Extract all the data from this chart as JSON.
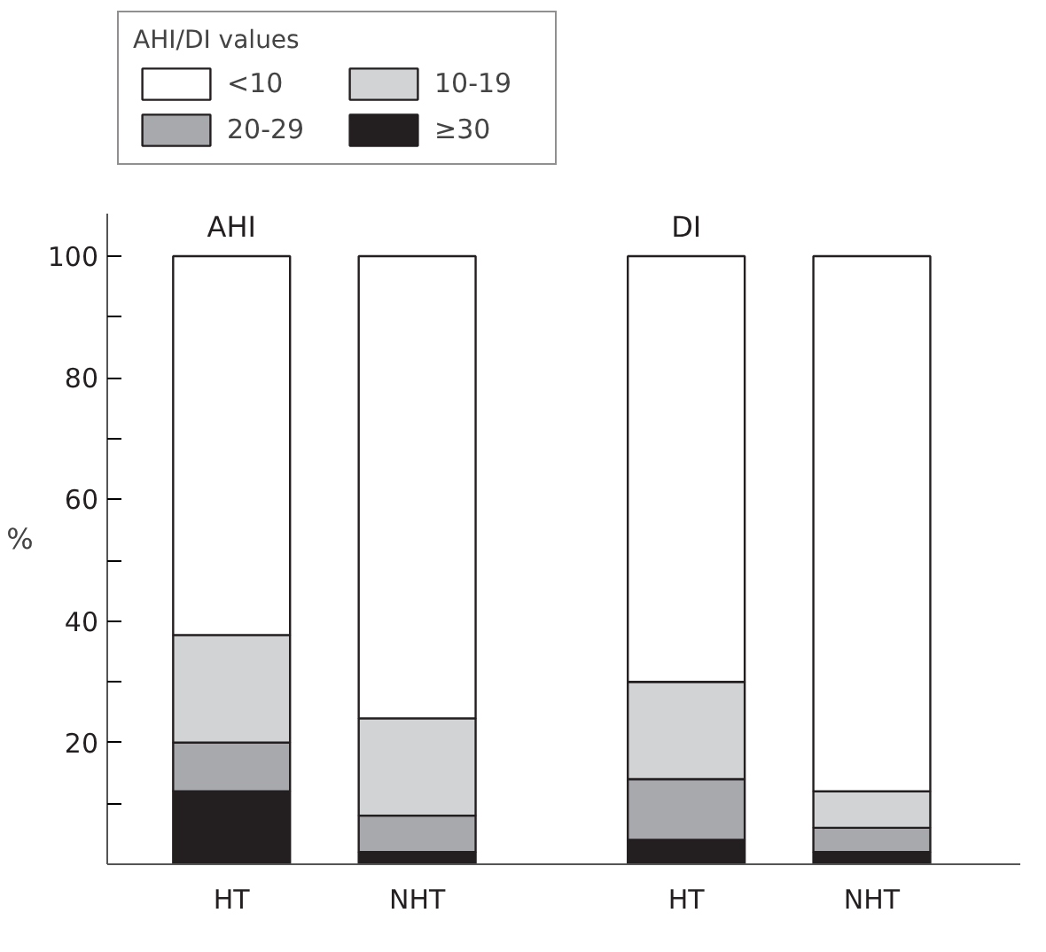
{
  "chart_data": {
    "type": "bar",
    "stacked": true,
    "ylabel": "%",
    "legend_title": "AHI/DI values",
    "legend": "top left",
    "grid": false,
    "categories": [
      "HT",
      "NHT",
      "HT",
      "NHT"
    ],
    "annotations": [
      "AHI",
      "DI"
    ],
    "series": [
      {
        "name": "≥30",
        "color": "#231f20",
        "values": [
          12,
          2,
          4,
          2
        ]
      },
      {
        "name": "20-29",
        "color": "#a7a9ac",
        "values": [
          8,
          6,
          10,
          4
        ]
      },
      {
        "name": "10-19",
        "color": "#d1d3d4",
        "values": [
          17.7,
          16,
          16,
          6
        ]
      },
      {
        "name": "<10",
        "color": "#ffffff",
        "values": [
          62.3,
          76,
          70,
          88
        ]
      }
    ],
    "ylim": [
      0,
      107
    ],
    "yticks": [
      {
        "value": 10,
        "label": null
      },
      20,
      {
        "value": 30,
        "label": null
      },
      40,
      {
        "value": 50,
        "label": null
      },
      60,
      {
        "value": 70,
        "label": null
      },
      80,
      {
        "value": 90,
        "label": null
      },
      100
    ]
  }
}
